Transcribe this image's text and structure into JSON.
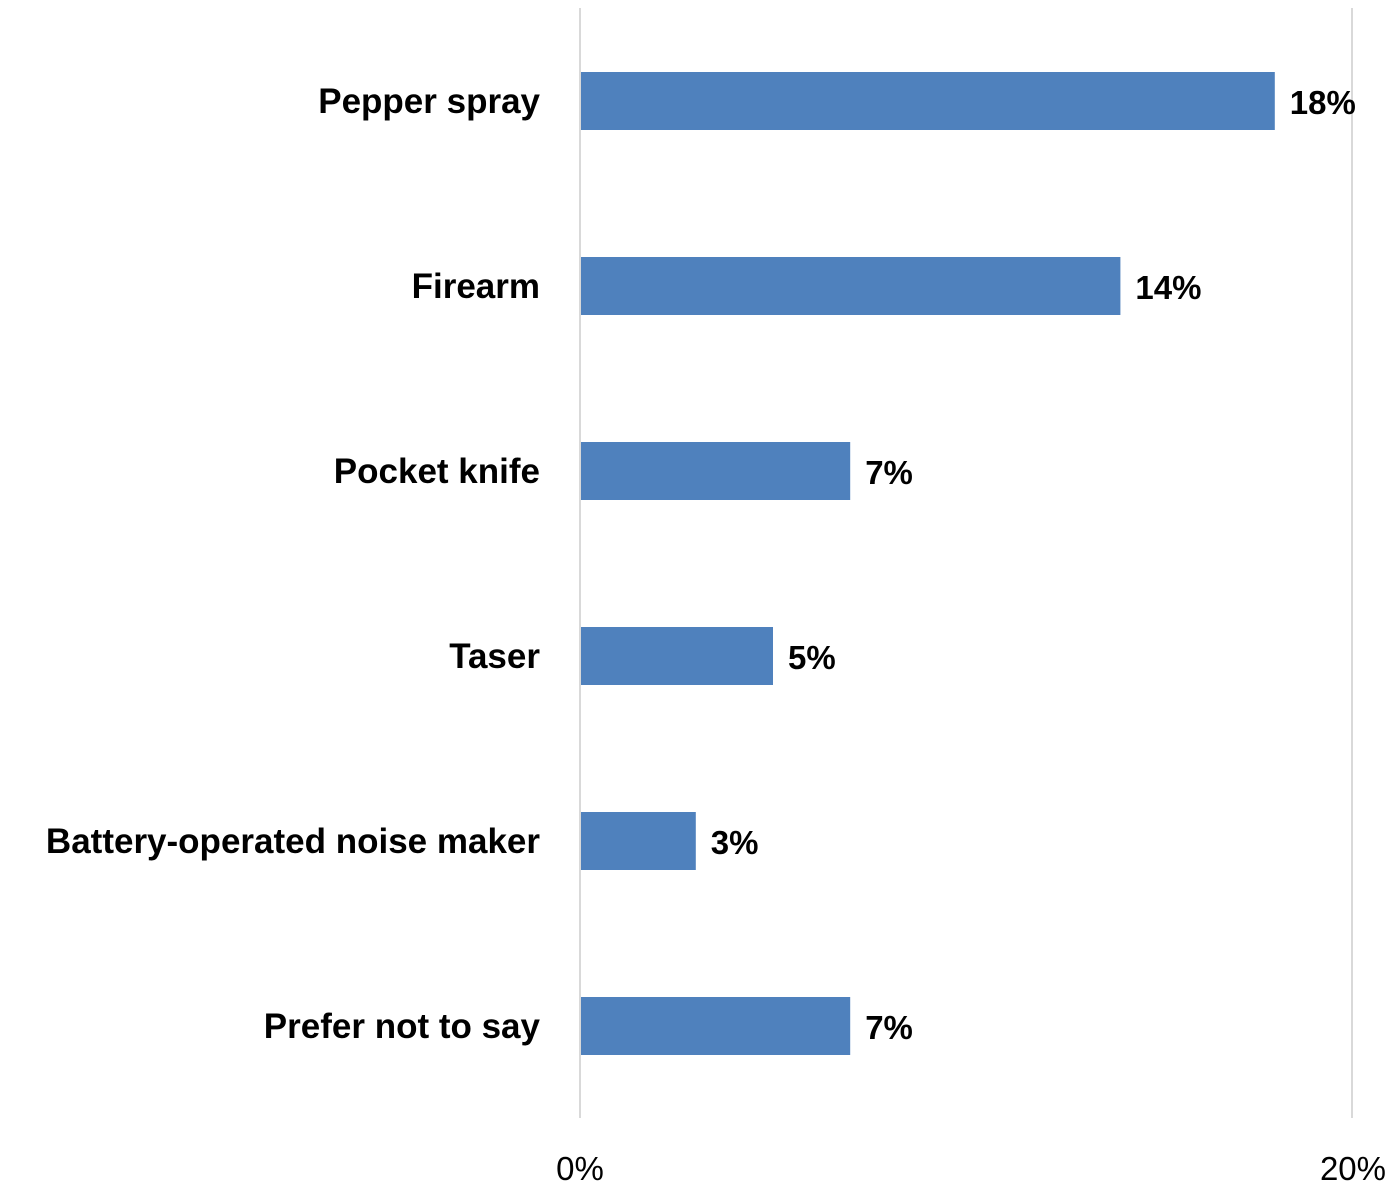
{
  "chart_data": {
    "type": "bar",
    "orientation": "horizontal",
    "categories": [
      "Pepper spray",
      "Firearm",
      "Pocket knife",
      "Taser",
      "Battery-operated noise maker",
      "Prefer not to say"
    ],
    "values": [
      18,
      14,
      7,
      5,
      3,
      7
    ],
    "data_labels": [
      "18%",
      "14%",
      "7%",
      "5%",
      "3%",
      "7%"
    ],
    "x_ticks": [
      0,
      20
    ],
    "x_tick_labels": [
      "0%",
      "20%"
    ],
    "xlim": [
      0,
      20
    ],
    "grid": true,
    "bar_color": "#4f81bd",
    "gridline_color": "#d9d9d9"
  }
}
